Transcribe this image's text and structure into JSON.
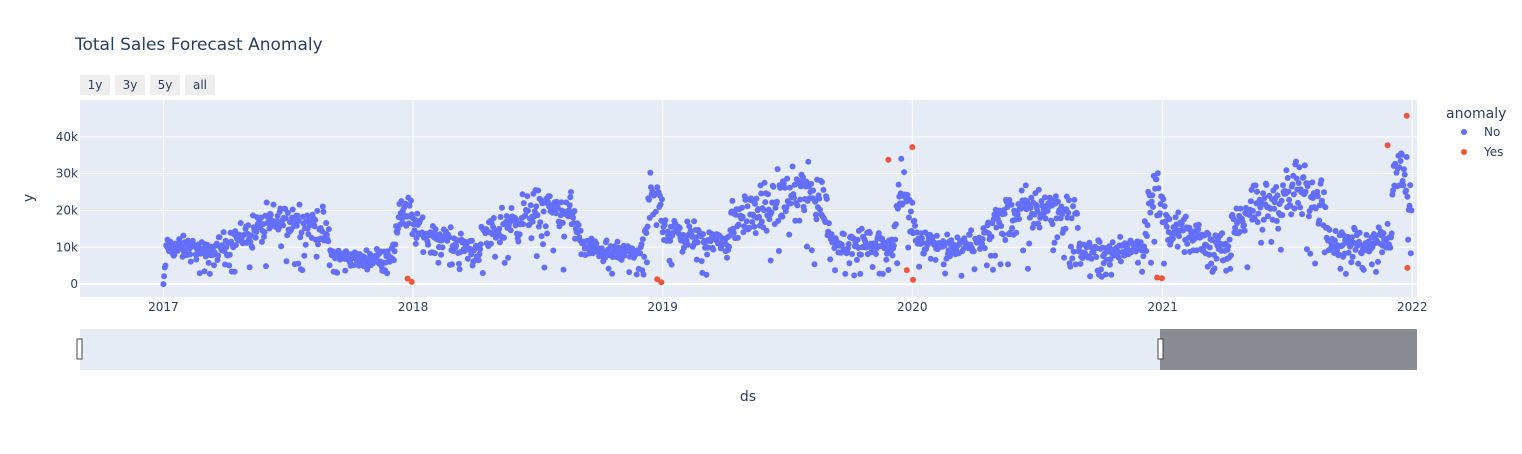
{
  "chart_data": {
    "type": "scatter",
    "title": "Total Sales Forecast Anomaly",
    "xlabel": "ds",
    "ylabel": "y",
    "x_tick_labels": [
      "2017",
      "2018",
      "2019",
      "2020",
      "2021",
      "2022"
    ],
    "y_ticks": [
      0,
      10000,
      20000,
      30000,
      40000
    ],
    "y_tick_labels": [
      "0",
      "10k",
      "20k",
      "30k",
      "40k"
    ],
    "xlim": [
      "2016-09-01",
      "2022-01-08"
    ],
    "ylim": [
      -3500,
      50000
    ],
    "range_selector": [
      "1y",
      "3y",
      "5y",
      "all"
    ],
    "legend_title": "anomaly",
    "range_slider_window": [
      "2016-09-01",
      "2020-12-31"
    ],
    "colors": {
      "No": "#636efa",
      "Yes": "#ef553b",
      "plot_bg": "#e5ecf6",
      "slider_bg": "#e5ecf6",
      "slider_mask": "#898b92"
    },
    "series": [
      {
        "name": "No",
        "color": "#636efa",
        "segments": [
          [
            "2017-01-01",
            0
          ],
          [
            "2017-01-06",
            10000
          ],
          [
            "2017-02-15",
            9500
          ],
          [
            "2017-03-01",
            8000
          ],
          [
            "2017-04-15",
            12000
          ],
          [
            "2017-06-01",
            16000
          ],
          [
            "2017-07-15",
            17500
          ],
          [
            "2017-08-25",
            15000
          ],
          [
            "2017-09-05",
            8000
          ],
          [
            "2017-10-20",
            6500
          ],
          [
            "2017-12-05",
            8500
          ],
          [
            "2017-12-12",
            21000
          ],
          [
            "2017-12-25",
            18500
          ],
          [
            "2018-01-10",
            14000
          ],
          [
            "2018-03-01",
            11500
          ],
          [
            "2018-04-08",
            8500
          ],
          [
            "2018-04-12",
            13000
          ],
          [
            "2018-06-01",
            17500
          ],
          [
            "2018-07-15",
            20500
          ],
          [
            "2018-08-25",
            18500
          ],
          [
            "2018-09-05",
            10000
          ],
          [
            "2018-10-20",
            8500
          ],
          [
            "2018-12-05",
            9000
          ],
          [
            "2018-12-12",
            22500
          ],
          [
            "2018-12-26",
            21500
          ],
          [
            "2019-01-10",
            14000
          ],
          [
            "2019-03-01",
            12500
          ],
          [
            "2019-04-08",
            11000
          ],
          [
            "2019-04-12",
            17000
          ],
          [
            "2019-06-01",
            20500
          ],
          [
            "2019-07-15",
            24500
          ],
          [
            "2019-08-25",
            22500
          ],
          [
            "2019-09-05",
            11500
          ],
          [
            "2019-10-20",
            11000
          ],
          [
            "2019-12-05",
            10500
          ],
          [
            "2019-12-12",
            24500
          ],
          [
            "2019-12-26",
            22500
          ],
          [
            "2020-01-10",
            12500
          ],
          [
            "2020-03-01",
            9500
          ],
          [
            "2020-04-08",
            11500
          ],
          [
            "2020-04-12",
            14000
          ],
          [
            "2020-06-01",
            19000
          ],
          [
            "2020-07-15",
            21500
          ],
          [
            "2020-08-25",
            18500
          ],
          [
            "2020-09-05",
            8500
          ],
          [
            "2020-10-20",
            9000
          ],
          [
            "2020-12-05",
            11000
          ],
          [
            "2020-12-12",
            24500
          ],
          [
            "2020-12-26",
            24000
          ],
          [
            "2021-01-10",
            15000
          ],
          [
            "2021-03-01",
            11500
          ],
          [
            "2021-04-08",
            9500
          ],
          [
            "2021-04-12",
            16500
          ],
          [
            "2021-06-01",
            21500
          ],
          [
            "2021-07-15",
            25000
          ],
          [
            "2021-08-25",
            22000
          ],
          [
            "2021-09-05",
            11000
          ],
          [
            "2021-10-20",
            11500
          ],
          [
            "2021-12-01",
            13500
          ],
          [
            "2021-12-05",
            28000
          ],
          [
            "2021-12-20",
            33000
          ],
          [
            "2021-12-31",
            20000
          ]
        ]
      },
      {
        "name": "Yes",
        "color": "#ef553b",
        "points": [
          [
            "2017-12-24",
            1500
          ],
          [
            "2017-12-30",
            600
          ],
          [
            "2018-12-24",
            1300
          ],
          [
            "2018-12-30",
            500
          ],
          [
            "2019-11-27",
            33800
          ],
          [
            "2019-12-24",
            3800
          ],
          [
            "2020-01-01",
            37200
          ],
          [
            "2020-01-02",
            1200
          ],
          [
            "2020-12-24",
            1800
          ],
          [
            "2020-12-31",
            1600
          ],
          [
            "2021-11-26",
            37700
          ],
          [
            "2021-12-24",
            45700
          ],
          [
            "2021-12-25",
            4400
          ]
        ]
      }
    ]
  }
}
